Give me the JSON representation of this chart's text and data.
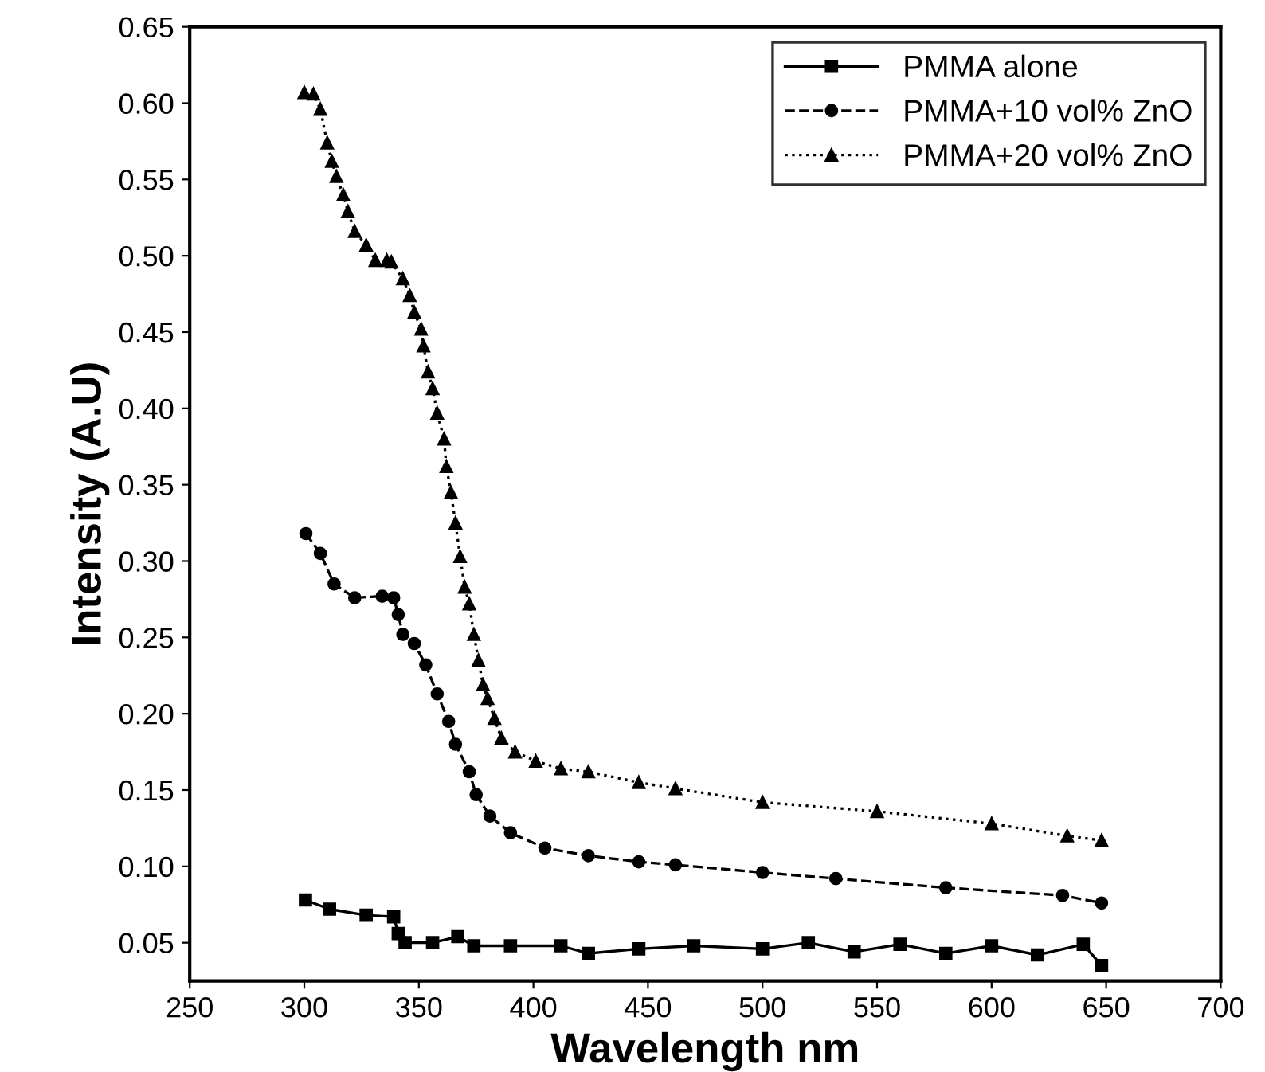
{
  "chart_data": {
    "type": "line",
    "xlabel": "Wavelength nm",
    "ylabel": "Intensity (A.U)",
    "xlim": [
      250,
      700
    ],
    "xticks": [
      250,
      300,
      350,
      400,
      450,
      500,
      550,
      600,
      650,
      700
    ],
    "ylim": [
      0.025,
      0.65
    ],
    "yticks": [
      0.05,
      {
        "value": 0.1,
        "label": "0.10"
      },
      0.15,
      {
        "value": 0.2,
        "label": "0.20"
      },
      0.25,
      {
        "value": 0.3,
        "label": "0.30"
      },
      0.35,
      {
        "value": 0.4,
        "label": "0.40"
      },
      0.45,
      {
        "value": 0.5,
        "label": "0.50"
      },
      0.55,
      {
        "value": 0.6,
        "label": "0.60"
      },
      0.65
    ],
    "grid": false,
    "legend": "top right",
    "series": [
      {
        "name": "PMMA alone",
        "color": "#000000",
        "marker": "square",
        "line_style": "solid",
        "x": [
          300.5,
          311,
          327,
          339,
          341,
          344,
          356,
          367,
          374,
          390,
          412,
          424,
          446,
          470,
          500,
          520,
          540,
          560,
          580,
          600,
          620,
          640,
          648
        ],
        "values": [
          0.078,
          0.072,
          0.068,
          0.067,
          0.056,
          0.05,
          0.05,
          0.054,
          0.048,
          0.048,
          0.048,
          0.043,
          0.046,
          0.048,
          0.046,
          0.05,
          0.044,
          0.049,
          0.043,
          0.048,
          0.042,
          0.049,
          0.035
        ]
      },
      {
        "name": "PMMA+10 vol% ZnO",
        "color": "#000000",
        "marker": "circle",
        "line_style": "dashed",
        "x": [
          300.7,
          307,
          313,
          322,
          334,
          339,
          341,
          343,
          348,
          353,
          358,
          363,
          366,
          372,
          375,
          381,
          390,
          405,
          424,
          446,
          462,
          500,
          532,
          580,
          631,
          648
        ],
        "values": [
          0.318,
          0.305,
          0.285,
          0.276,
          0.277,
          0.276,
          0.265,
          0.252,
          0.246,
          0.232,
          0.213,
          0.195,
          0.18,
          0.162,
          0.147,
          0.133,
          0.122,
          0.112,
          0.107,
          0.103,
          0.101,
          0.096,
          0.092,
          0.086,
          0.081,
          0.076
        ]
      },
      {
        "name": "PMMA+20 vol% ZnO",
        "color": "#000000",
        "marker": "triangle",
        "line_style": "dotted",
        "x": [
          300,
          304,
          307,
          310,
          312,
          314,
          317,
          319,
          322,
          327,
          331,
          336,
          338,
          343,
          346,
          348,
          351,
          352,
          354,
          356,
          358,
          361,
          362,
          364,
          366,
          368,
          370,
          372,
          374,
          376,
          378,
          380,
          383,
          386,
          392,
          401,
          412,
          424,
          446,
          462,
          500,
          550,
          600,
          633,
          648
        ],
        "values": [
          0.607,
          0.606,
          0.596,
          0.574,
          0.562,
          0.552,
          0.54,
          0.529,
          0.516,
          0.507,
          0.497,
          0.497,
          0.496,
          0.485,
          0.474,
          0.463,
          0.452,
          0.441,
          0.424,
          0.413,
          0.397,
          0.38,
          0.362,
          0.345,
          0.325,
          0.303,
          0.283,
          0.272,
          0.252,
          0.235,
          0.219,
          0.21,
          0.197,
          0.184,
          0.175,
          0.169,
          0.164,
          0.162,
          0.155,
          0.151,
          0.142,
          0.136,
          0.128,
          0.12,
          0.117
        ]
      }
    ]
  }
}
